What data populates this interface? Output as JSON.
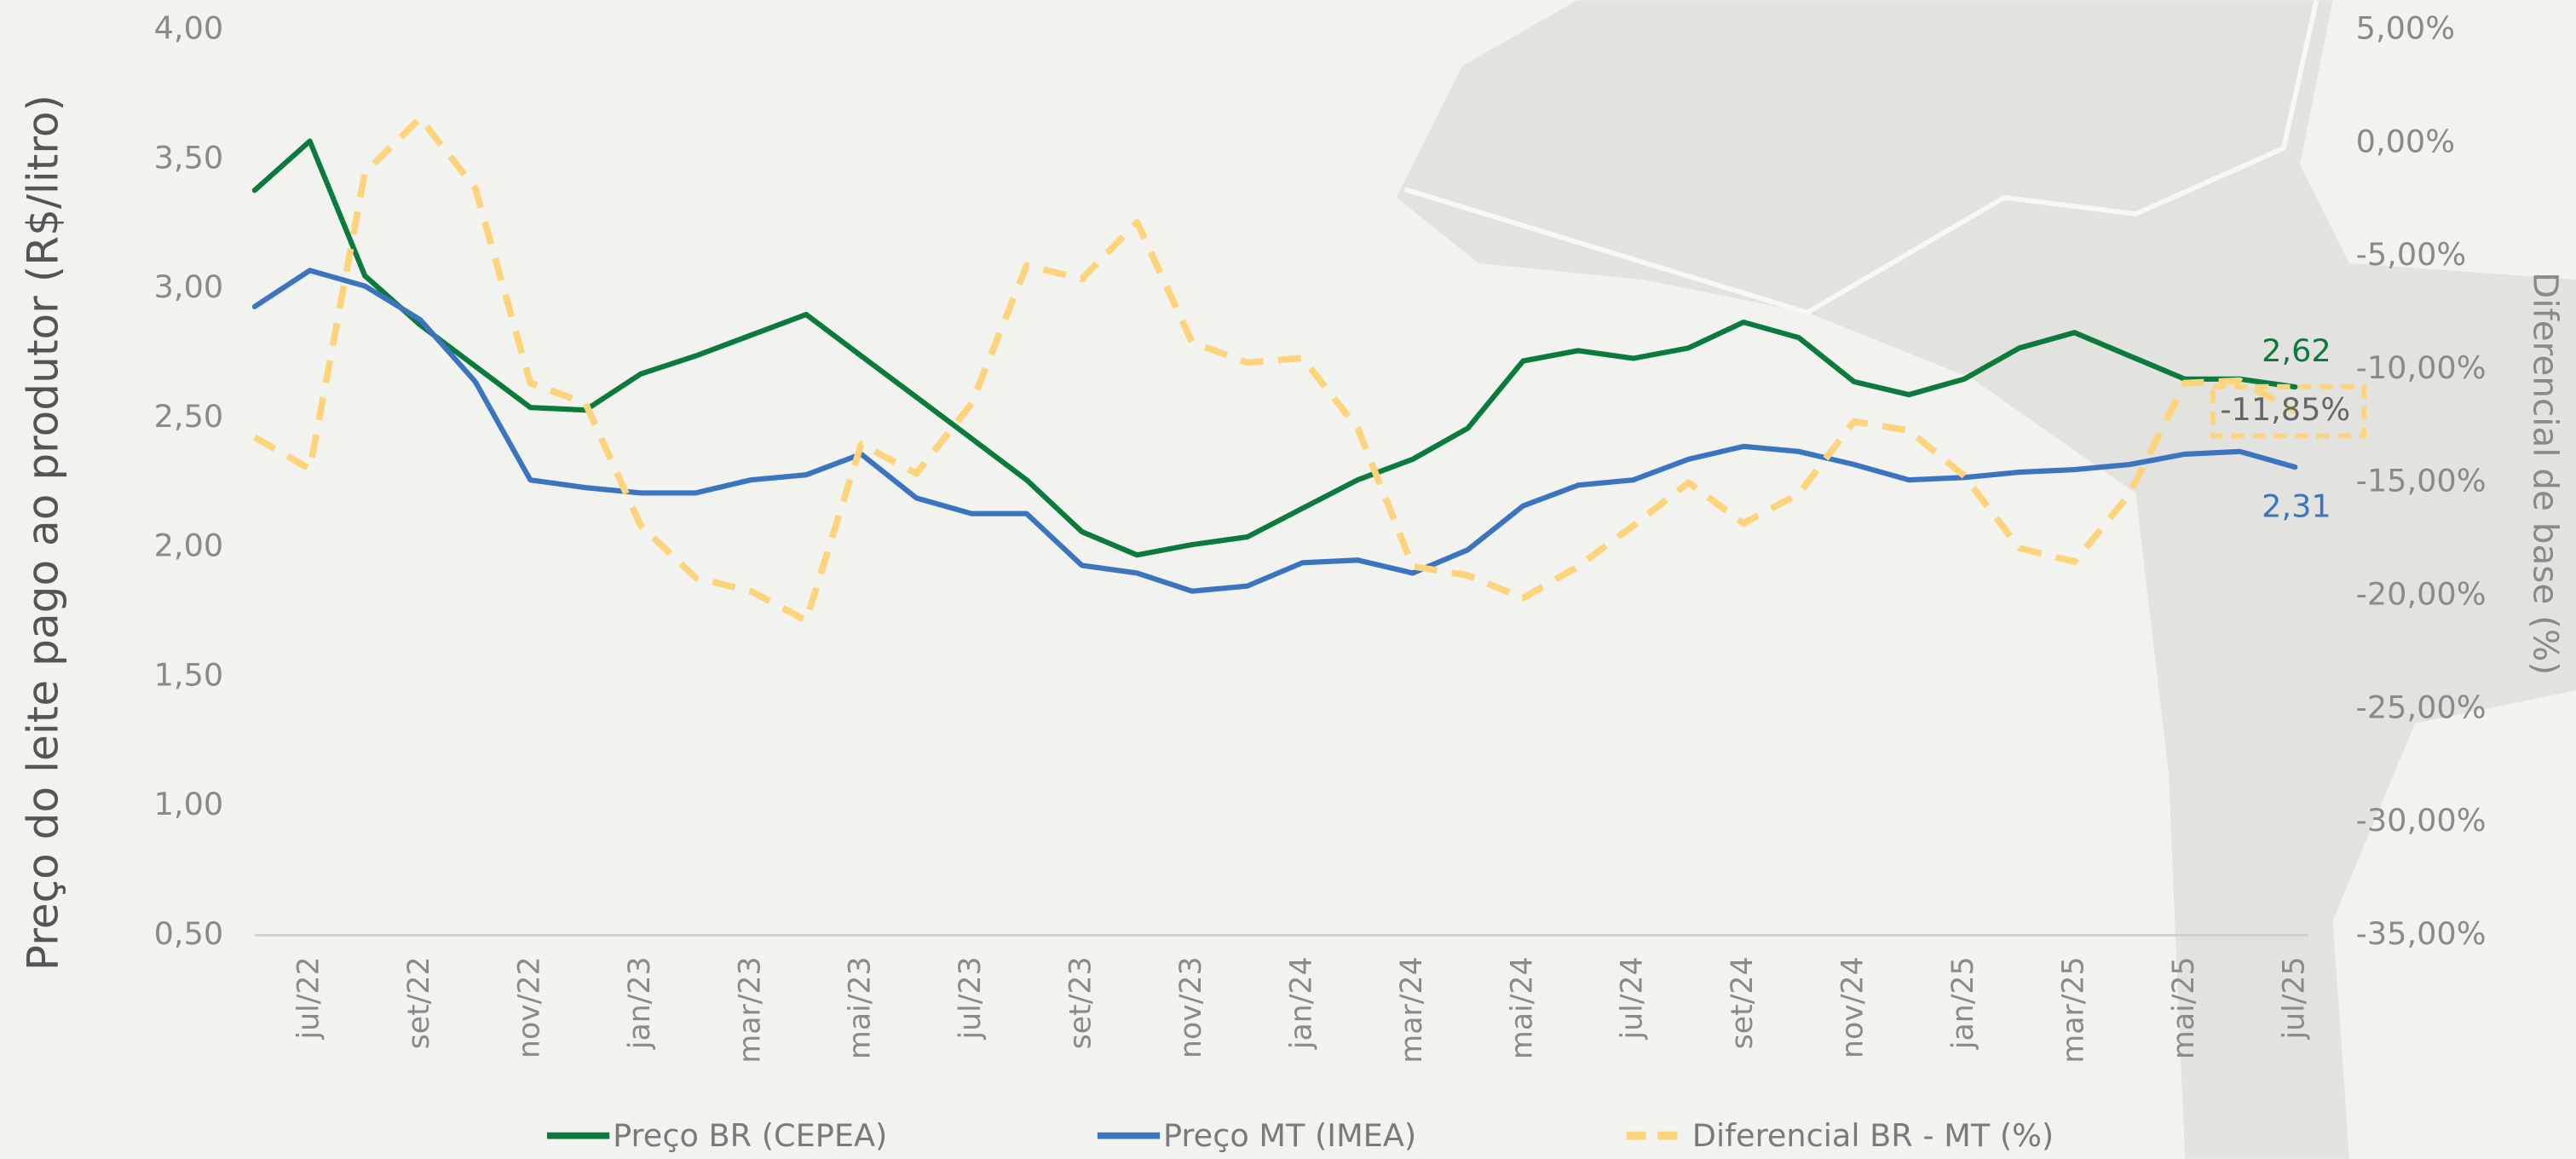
{
  "chart_data": {
    "type": "line",
    "categories": [
      null,
      "jul/22",
      null,
      "set/22",
      null,
      "nov/22",
      null,
      "jan/23",
      null,
      "mar/23",
      null,
      "mai/23",
      null,
      "jul/23",
      null,
      "set/23",
      null,
      "nov/23",
      null,
      "jan/24",
      null,
      "mar/24",
      null,
      "mai/24",
      null,
      "jul/24",
      null,
      "set/24",
      null,
      "nov/24",
      null,
      "jan/25",
      null,
      "mar/25",
      null,
      "mai/25",
      null,
      "jul/25"
    ],
    "series": [
      {
        "name": "Preço BR (CEPEA)",
        "color": "#0b7a3d",
        "values": [
          3.38,
          3.57,
          3.05,
          2.86,
          2.7,
          2.54,
          2.53,
          2.67,
          2.74,
          2.82,
          2.9,
          2.74,
          2.58,
          2.42,
          2.26,
          2.06,
          1.97,
          2.01,
          2.04,
          2.15,
          2.26,
          2.34,
          2.46,
          2.72,
          2.76,
          2.73,
          2.77,
          2.87,
          2.81,
          2.64,
          2.59,
          2.65,
          2.77,
          2.83,
          2.74,
          2.65,
          2.65,
          2.62
        ],
        "value_labels": [
          null,
          null,
          null,
          null,
          null,
          null,
          null,
          null,
          null,
          null,
          null,
          null,
          null,
          null,
          null,
          null,
          null,
          null,
          null,
          null,
          null,
          null,
          null,
          null,
          null,
          null,
          null,
          null,
          null,
          null,
          null,
          null,
          null,
          null,
          null,
          null,
          null,
          "2,62"
        ]
      },
      {
        "name": "Preço MT (IMEA)",
        "color": "#3b74bf",
        "values": [
          2.93,
          3.07,
          3.01,
          2.88,
          2.64,
          2.26,
          2.23,
          2.21,
          2.21,
          2.26,
          2.28,
          2.36,
          2.19,
          2.13,
          2.13,
          1.93,
          1.9,
          1.83,
          1.85,
          1.94,
          1.95,
          1.9,
          1.99,
          2.16,
          2.24,
          2.26,
          2.34,
          2.39,
          2.37,
          2.32,
          2.26,
          2.27,
          2.29,
          2.3,
          2.32,
          2.36,
          2.37,
          2.31
        ],
        "value_labels": [
          null,
          null,
          null,
          null,
          null,
          null,
          null,
          null,
          null,
          null,
          null,
          null,
          null,
          null,
          null,
          null,
          null,
          null,
          null,
          null,
          null,
          null,
          null,
          null,
          null,
          null,
          null,
          null,
          null,
          null,
          null,
          null,
          null,
          null,
          null,
          null,
          null,
          "2,31"
        ]
      },
      {
        "name": "Diferencial BR - MT (%)",
        "color": "#fdd47c",
        "axis": "y2",
        "dashed": true,
        "values": [
          -13.0,
          -14.4,
          -1.3,
          1.1,
          -2.0,
          -10.6,
          -11.5,
          -16.9,
          -19.2,
          -19.8,
          -21.1,
          -13.3,
          -14.6,
          -11.5,
          -5.4,
          -6.0,
          -3.5,
          -8.8,
          -9.7,
          -9.5,
          -12.6,
          -18.7,
          -19.1,
          -20.1,
          -18.7,
          -16.9,
          -15.0,
          -16.8,
          -15.5,
          -12.3,
          -12.7,
          -14.7,
          -17.9,
          -18.5,
          -15.5,
          -10.6,
          -10.5,
          -11.85
        ],
        "value_labels": [
          null,
          null,
          null,
          null,
          null,
          null,
          null,
          null,
          null,
          null,
          null,
          null,
          null,
          null,
          null,
          null,
          null,
          null,
          null,
          null,
          null,
          null,
          null,
          null,
          null,
          null,
          null,
          null,
          null,
          null,
          null,
          null,
          null,
          null,
          null,
          null,
          null,
          "-11,85%"
        ]
      }
    ],
    "y_label": "Preço do leite pago ao produtor  (R$/litro)",
    "y2_label": "Diferencial de base (%)",
    "ylim": [
      0.5,
      4.0
    ],
    "yticks": [
      {
        "value": 0.5,
        "label": "0,50"
      },
      {
        "value": 1.0,
        "label": "1,00"
      },
      {
        "value": 1.5,
        "label": "1,50"
      },
      {
        "value": 2.0,
        "label": "2,00"
      },
      {
        "value": 2.5,
        "label": "2,50"
      },
      {
        "value": 3.0,
        "label": "3,00"
      },
      {
        "value": 3.5,
        "label": "3,50"
      },
      {
        "value": 4.0,
        "label": "4,00"
      }
    ],
    "y2lim": [
      -35,
      5
    ],
    "y2ticks": [
      {
        "value": -35,
        "label": "-35,00%"
      },
      {
        "value": -30,
        "label": "-30,00%"
      },
      {
        "value": -25,
        "label": "-25,00%"
      },
      {
        "value": -20,
        "label": "-20,00%"
      },
      {
        "value": -15,
        "label": "-15,00%"
      },
      {
        "value": -10,
        "label": "-10,00%"
      },
      {
        "value": -5,
        "label": "-5,00%"
      },
      {
        "value": 0,
        "label": "0,00%"
      },
      {
        "value": 5,
        "label": "5,00%"
      }
    ],
    "legend": "bottom",
    "grid": false
  }
}
